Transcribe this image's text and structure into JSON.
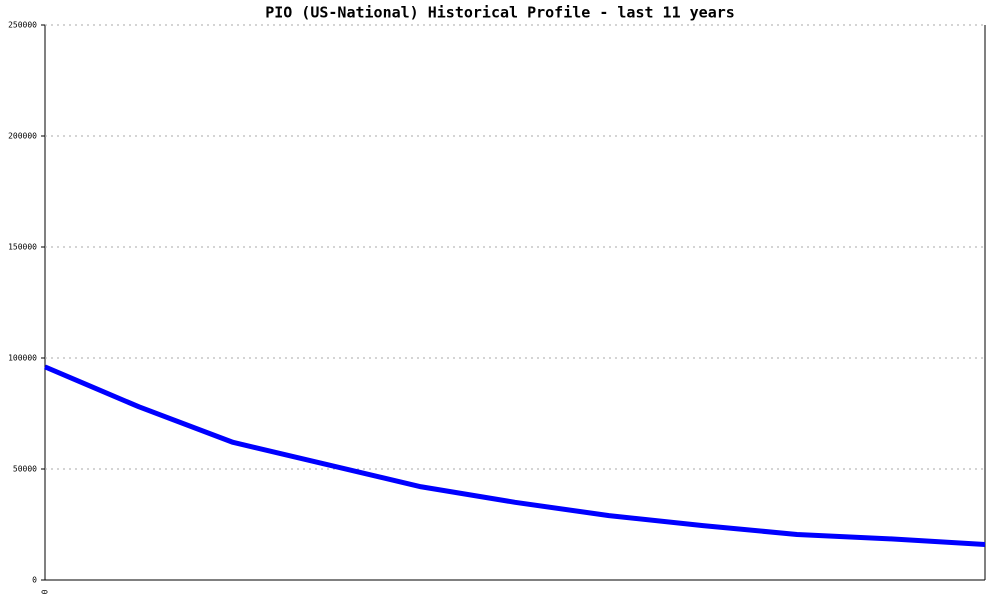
{
  "chart_data": {
    "type": "line",
    "title": "PIO (US-National) Historical Profile - last 11 years",
    "categories": [
      "0",
      null,
      null,
      null,
      null,
      null,
      null,
      null,
      null,
      null,
      null
    ],
    "values": [
      96000,
      78000,
      62000,
      52000,
      42000,
      35000,
      29000,
      24500,
      20500,
      18500,
      16000
    ],
    "color": "#0000ff",
    "ylim": [
      0,
      250000
    ],
    "yticks": [
      0,
      50000,
      100000,
      150000,
      200000,
      250000
    ],
    "grid": true
  }
}
